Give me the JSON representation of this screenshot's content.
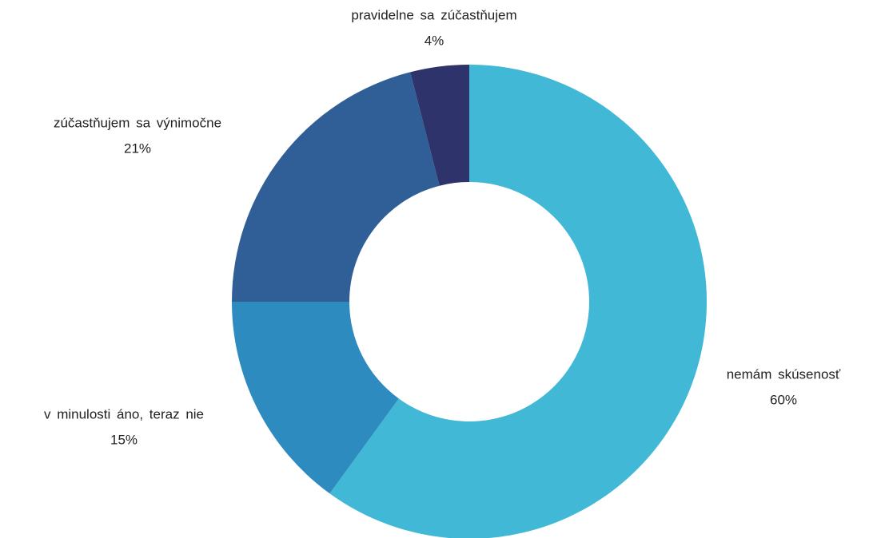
{
  "chart_data": {
    "type": "donut",
    "categories": [
      "nemám skúsenosť",
      "v minulosti áno, teraz nie",
      "zúčastňujem sa výnimočne",
      "pravidelne sa zúčastňujem"
    ],
    "values": [
      60,
      15,
      21,
      4
    ],
    "value_labels": [
      "60%",
      "15%",
      "21%",
      "4%"
    ],
    "colors": [
      "#41b8d5",
      "#2e8bc0",
      "#2f5f96",
      "#2e346b"
    ]
  }
}
